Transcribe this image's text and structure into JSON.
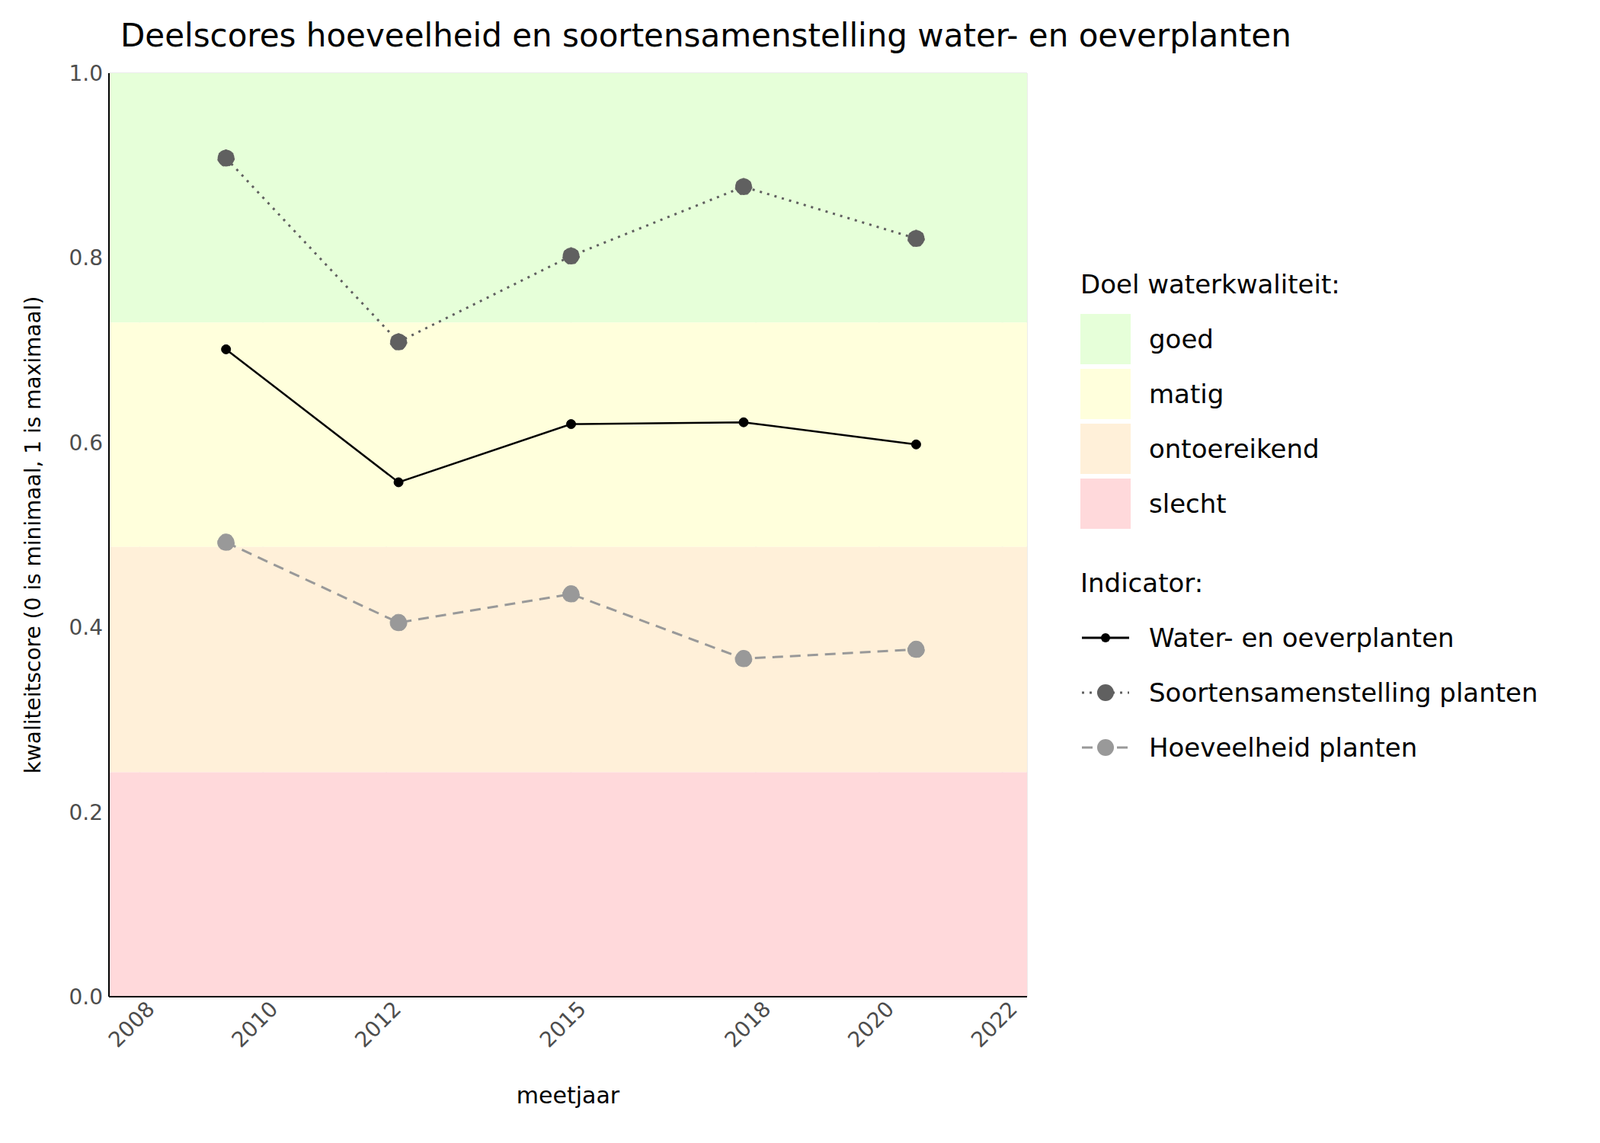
{
  "chart_data": {
    "type": "line",
    "title": "Deelscores hoeveelheid en soortensamenstelling water- en oeverplanten",
    "x_label": "meetjaar",
    "y_label": "kwaliteitscore (0 is minimaal, 1 is maximaal)",
    "x": [
      2009.4,
      2012.2,
      2015.0,
      2017.8,
      2020.6
    ],
    "xlim": [
      2007.5,
      2022.4
    ],
    "xticks": [
      2008,
      2010,
      2012,
      2015,
      2018,
      2020,
      2022
    ],
    "ylim": [
      0,
      1
    ],
    "yticks": [
      {
        "value": 0,
        "label": "0.0"
      },
      0.2,
      0.4,
      0.6,
      0.8,
      {
        "value": 1,
        "label": "1.0"
      }
    ],
    "grid": true,
    "legend": "right",
    "bands_title": "Doel waterkwaliteit:",
    "bands": [
      {
        "name": "goed",
        "color": "#e6ffd9",
        "from": 0.73,
        "to": 1
      },
      {
        "name": "matig",
        "color": "#ffffdc",
        "from": 0.487,
        "to": 0.73
      },
      {
        "name": "ontoereikend",
        "color": "#fff0d9",
        "from": 0.243,
        "to": 0.487
      },
      {
        "name": "slecht",
        "color": "#ffd9db",
        "from": 0,
        "to": 0.243
      }
    ],
    "series_title": "Indicator:",
    "series": [
      {
        "name": "Water- en oeverplanten",
        "color": "#000000",
        "marker": "circle",
        "line_style": "solid",
        "values": [
          0.701,
          0.557,
          0.62,
          0.622,
          0.598
        ]
      },
      {
        "name": "Soortensamenstelling planten",
        "color": "#606060",
        "marker": "circle",
        "line_style": "dotted",
        "values": [
          0.908,
          0.709,
          0.802,
          0.877,
          0.821
        ]
      },
      {
        "name": "Hoeveelheid planten",
        "color": "#999999",
        "marker": "circle",
        "line_style": "dashed",
        "values": [
          0.492,
          0.405,
          0.436,
          0.366,
          0.376
        ]
      }
    ]
  }
}
